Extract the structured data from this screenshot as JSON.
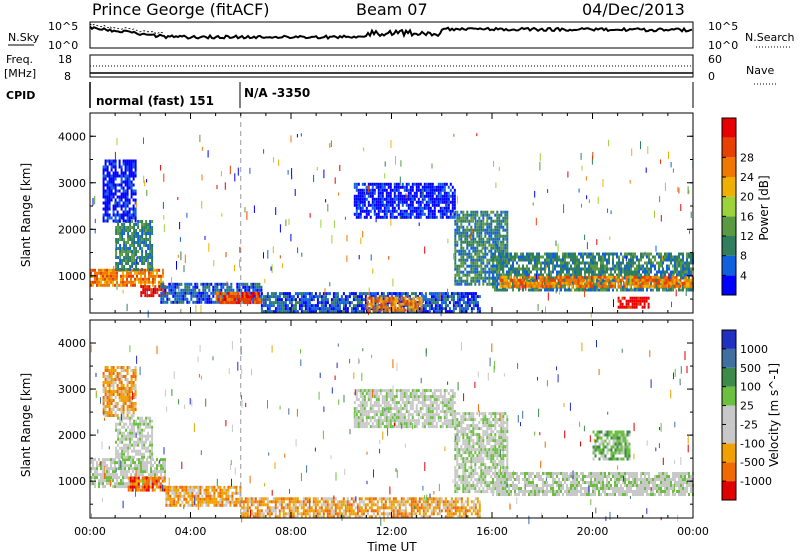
{
  "header": {
    "station": "Prince George (fitACF)",
    "beam": "Beam 07",
    "date": "04/Dec/2013"
  },
  "top_panels": {
    "nsky_label": "N.Sky",
    "nsearch_label": "N.Search",
    "noise_ticks": [
      "10^5",
      "10^0"
    ],
    "freq_label": "Freq.",
    "freq_unit": "[MHz]",
    "freq_ticks": [
      "18",
      "8"
    ],
    "nave_label": "Nave",
    "nave_ticks": [
      "60",
      "0"
    ],
    "cpid_label": "CPID",
    "cpid_entries": [
      "normal (fast) 151",
      "N/A -3350"
    ]
  },
  "colors": {
    "power": [
      "#0000ff",
      "#1060e0",
      "#2f7f5f",
      "#5a9a40",
      "#9cd23a",
      "#f0b000",
      "#f07800",
      "#e84000",
      "#e80000"
    ],
    "velocity": [
      "#2030c0",
      "#3f70a0",
      "#3e8a4a",
      "#6cc040",
      "#c8c8c8",
      "#c8c8c8",
      "#f0a000",
      "#f06a00",
      "#e00000"
    ]
  },
  "chart_data": [
    {
      "type": "heatmap",
      "quantity": "power",
      "ylabel": "Slant Range [km]",
      "xlabel": "",
      "yticks": [
        "1000",
        "2000",
        "3000",
        "4000"
      ],
      "ylim": [
        200,
        4500
      ],
      "xlim": [
        0,
        24
      ],
      "colorbar_label": "Power [dB]",
      "colorbar_ticks": [
        "4",
        "8",
        "12",
        "16",
        "20",
        "24",
        "28"
      ],
      "regions": [
        {
          "t0": 0.0,
          "t1": 2.9,
          "r0": 800,
          "r1": 1150,
          "level": 6
        },
        {
          "t0": 1.0,
          "t1": 2.5,
          "r0": 1150,
          "r1": 2200,
          "level": 2
        },
        {
          "t0": 0.5,
          "t1": 1.8,
          "r0": 2200,
          "r1": 3500,
          "level": 0
        },
        {
          "t0": 2.0,
          "t1": 3.0,
          "r0": 550,
          "r1": 800,
          "level": 8
        },
        {
          "t0": 2.8,
          "t1": 6.8,
          "r0": 450,
          "r1": 850,
          "level": 1
        },
        {
          "t0": 5.0,
          "t1": 6.8,
          "r0": 450,
          "r1": 650,
          "level": 7
        },
        {
          "t0": 6.8,
          "t1": 15.5,
          "r0": 250,
          "r1": 650,
          "level": 1
        },
        {
          "t0": 11.0,
          "t1": 13.2,
          "r0": 250,
          "r1": 550,
          "level": 6
        },
        {
          "t0": 10.5,
          "t1": 14.5,
          "r0": 2250,
          "r1": 3000,
          "level": 0
        },
        {
          "t0": 14.5,
          "t1": 16.6,
          "r0": 800,
          "r1": 2400,
          "level": 2
        },
        {
          "t0": 16.0,
          "t1": 24.0,
          "r0": 700,
          "r1": 1500,
          "level": 2
        },
        {
          "t0": 16.3,
          "t1": 24.0,
          "r0": 800,
          "r1": 1000,
          "level": 6
        },
        {
          "t0": 21.0,
          "t1": 22.2,
          "r0": 300,
          "r1": 550,
          "level": 8
        }
      ]
    },
    {
      "type": "heatmap",
      "quantity": "velocity",
      "ylabel": "Slant Range [km]",
      "xlabel": "Time UT",
      "xticks": [
        "00:00",
        "04:00",
        "08:00",
        "12:00",
        "16:00",
        "20:00",
        "00:00"
      ],
      "yticks": [
        "1000",
        "2000",
        "3000",
        "4000"
      ],
      "ylim": [
        200,
        4500
      ],
      "xlim": [
        0,
        24
      ],
      "colorbar_label": "Velocity [m s^-1]",
      "colorbar_ticks": [
        "1000",
        "500",
        "100",
        "25",
        "-25",
        "-100",
        "-500",
        "-1000"
      ],
      "regions": [
        {
          "t0": 0.0,
          "t1": 3.0,
          "r0": 900,
          "r1": 1500,
          "level": 4
        },
        {
          "t0": 1.0,
          "t1": 2.5,
          "r0": 1500,
          "r1": 2400,
          "level": 4
        },
        {
          "t0": 1.5,
          "t1": 3.0,
          "r0": 800,
          "r1": 1100,
          "level": 7
        },
        {
          "t0": 0.5,
          "t1": 1.8,
          "r0": 2400,
          "r1": 3500,
          "level": 6
        },
        {
          "t0": 3.0,
          "t1": 6.0,
          "r0": 500,
          "r1": 900,
          "level": 6
        },
        {
          "t0": 6.0,
          "t1": 15.5,
          "r0": 250,
          "r1": 650,
          "level": 6
        },
        {
          "t0": 10.5,
          "t1": 14.5,
          "r0": 2200,
          "r1": 3000,
          "level": 4
        },
        {
          "t0": 14.5,
          "t1": 16.6,
          "r0": 800,
          "r1": 2500,
          "level": 4
        },
        {
          "t0": 16.0,
          "t1": 24.0,
          "r0": 700,
          "r1": 1200,
          "level": 4
        },
        {
          "t0": 20.0,
          "t1": 21.5,
          "r0": 1500,
          "r1": 2100,
          "level": 3
        }
      ]
    }
  ]
}
